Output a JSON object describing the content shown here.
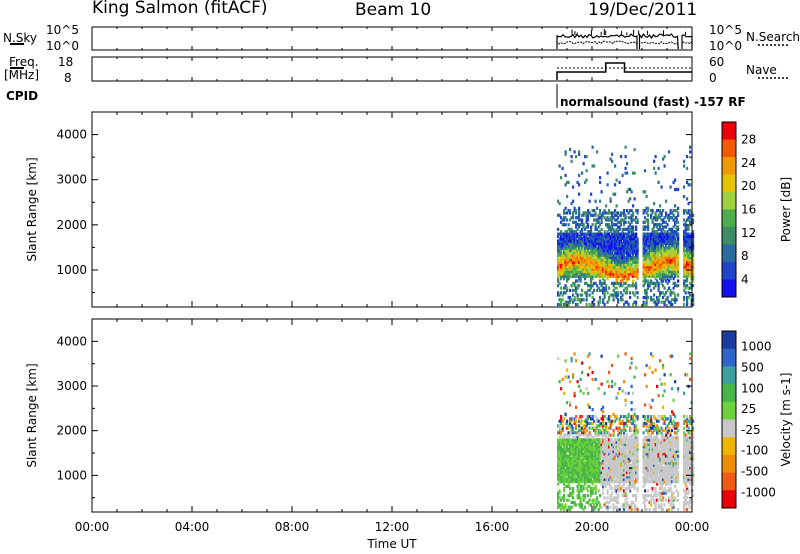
{
  "header": {
    "station": "King Salmon (fitACF)",
    "beam": "Beam 10",
    "date": "19/Dec/2011"
  },
  "strips": {
    "nsky": {
      "label": "N.Sky",
      "ticks": [
        "10^5",
        "10^0"
      ],
      "right_label": "N.Search",
      "right_ticks": [
        "10^5",
        "10^0"
      ]
    },
    "freq": {
      "label": "Freq.",
      "unit": "[MHz]",
      "ticks": [
        "18",
        "8"
      ],
      "right_label": "Nave",
      "right_ticks": [
        "60",
        "0"
      ]
    },
    "cpid": {
      "label": "CPID",
      "program": "normalsound (fast) -157 RF"
    }
  },
  "chart_data": [
    {
      "type": "heatmap",
      "name": "power",
      "ylabel": "Slant Range [km]",
      "xlabel": "",
      "y_ticks": [
        "4000",
        "3000",
        "2000",
        "1000"
      ],
      "y_range": [
        180,
        4500
      ],
      "x_range_hours": [
        0,
        24
      ],
      "colorbar": {
        "label": "Power [dB]",
        "ticks": [
          "28",
          "24",
          "20",
          "16",
          "12",
          "8",
          "4"
        ],
        "colors": [
          "#e8000b",
          "#f55a00",
          "#f09a00",
          "#e6c200",
          "#9ed040",
          "#4cad4c",
          "#3c8c64",
          "#2a6aa0",
          "#1e46c8",
          "#1010f0"
        ]
      }
    },
    {
      "type": "heatmap",
      "name": "velocity",
      "ylabel": "Slant Range [km]",
      "xlabel": "Time UT",
      "x_ticks": [
        "00:00",
        "04:00",
        "08:00",
        "12:00",
        "16:00",
        "20:00",
        "00:00"
      ],
      "y_ticks": [
        "4000",
        "3000",
        "2000",
        "1000"
      ],
      "y_range": [
        180,
        4500
      ],
      "x_range_hours": [
        0,
        24
      ],
      "colorbar": {
        "label": "Velocity [m s-1]",
        "ticks": [
          "1000",
          "500",
          "100",
          "25",
          "-25",
          "-100",
          "-500",
          "-1000"
        ],
        "colors": [
          "#1a3ca0",
          "#2f64c8",
          "#3ca0a0",
          "#49b449",
          "#6cd23c",
          "#c8c8c8",
          "#f0b400",
          "#f08c00",
          "#f05a14",
          "#e8000b"
        ]
      }
    }
  ]
}
